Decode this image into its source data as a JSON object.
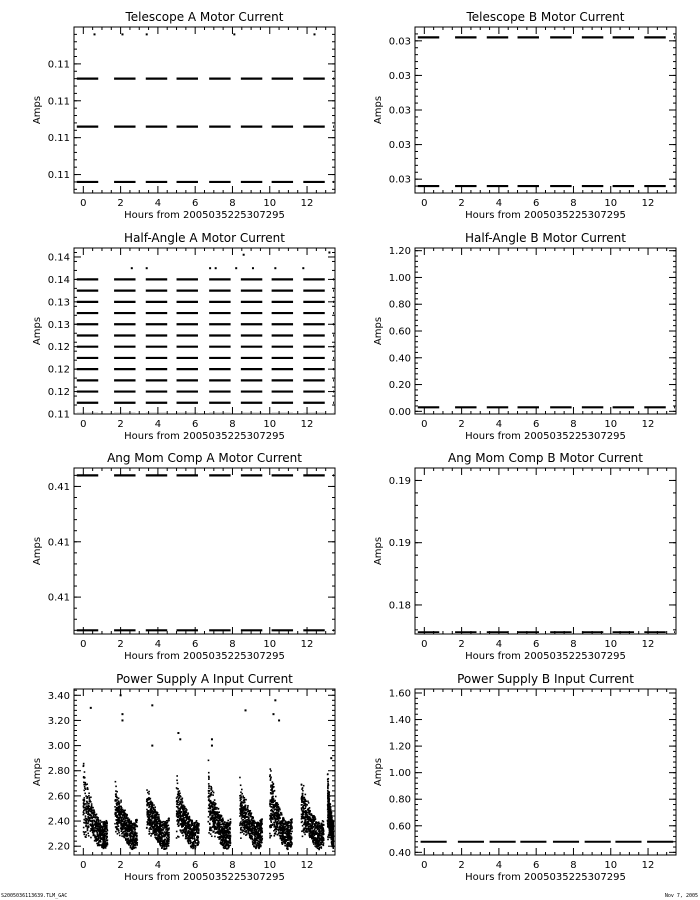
{
  "footer": {
    "left": "S2005036113639.TLM_GAC",
    "right": "Nov  7, 2005"
  },
  "chart_data": [
    {
      "type": "scatter",
      "title": "Telescope A Motor Current",
      "xlabel": "Hours from  2005035225307295",
      "ylabel": "Amps",
      "xlim": [
        -0.5,
        13.5
      ],
      "ylim": [
        0.108,
        0.1125
      ],
      "xticks": [
        0,
        2,
        4,
        6,
        8,
        10,
        12
      ],
      "yticks": [
        0.1085,
        0.1095,
        0.1105,
        0.1115
      ],
      "ytick_labels": [
        "0.11",
        "0.11",
        "0.11",
        "0.11"
      ],
      "levels": [
        0.1083,
        0.1098,
        0.1111
      ],
      "outliers": [
        [
          0.6,
          0.1123
        ],
        [
          2.1,
          0.1123
        ],
        [
          3.4,
          0.1123
        ],
        [
          8.1,
          0.1123
        ],
        [
          12.4,
          0.1123
        ]
      ]
    },
    {
      "type": "scatter",
      "title": "Telescope B Motor Current",
      "xlabel": "Hours from  2005035225307295",
      "ylabel": "Amps",
      "xlim": [
        -0.5,
        13.5
      ],
      "ylim": [
        0.0296,
        0.0344
      ],
      "xticks": [
        0,
        2,
        4,
        6,
        8,
        10,
        12
      ],
      "yticks": [
        0.03,
        0.031,
        0.032,
        0.033,
        0.034
      ],
      "ytick_labels": [
        "0.03",
        "0.03",
        "0.03",
        "0.03",
        "0.03"
      ],
      "levels": [
        0.0298,
        0.0341
      ],
      "outliers": []
    },
    {
      "type": "scatter",
      "title": "Half-Angle A Motor Current",
      "xlabel": "Hours from  2005035225307295",
      "ylabel": "Amps",
      "xlim": [
        -0.5,
        13.5
      ],
      "ylim": [
        0.11,
        0.147
      ],
      "xticks": [
        0,
        2,
        4,
        6,
        8,
        10,
        12
      ],
      "yticks": [
        0.11,
        0.12,
        0.13,
        0.14
      ],
      "ytick_labels": [
        "0.11",
        "0.12",
        "0.13",
        "0.14"
      ],
      "minor_yticks": [
        0.115,
        0.125,
        0.135,
        0.145
      ],
      "minor_ytick_labels": [
        "0.12",
        "0.12",
        "0.13",
        "0.14"
      ],
      "levels": [
        0.11,
        0.1125,
        0.115,
        0.1175,
        0.12,
        0.1225,
        0.125,
        0.1275,
        0.13,
        0.1325,
        0.135,
        0.1375,
        0.14
      ],
      "outliers": [
        [
          2.6,
          0.1425
        ],
        [
          3.4,
          0.1425
        ],
        [
          6.8,
          0.1425
        ],
        [
          7.1,
          0.1425
        ],
        [
          8.2,
          0.1425
        ],
        [
          8.6,
          0.1455
        ],
        [
          9.1,
          0.1425
        ],
        [
          10.3,
          0.1425
        ],
        [
          11.8,
          0.1425
        ],
        [
          13.2,
          0.146
        ]
      ]
    },
    {
      "type": "scatter",
      "title": "Half-Angle B Motor Current",
      "xlabel": "Hours from  2005035225307295",
      "ylabel": "Amps",
      "xlim": [
        -0.5,
        13.5
      ],
      "ylim": [
        -0.02,
        1.22
      ],
      "xticks": [
        0,
        2,
        4,
        6,
        8,
        10,
        12
      ],
      "yticks": [
        0.0,
        0.2,
        0.4,
        0.6,
        0.8,
        1.0,
        1.2
      ],
      "ytick_labels": [
        "0.00",
        "0.20",
        "0.40",
        "0.60",
        "0.80",
        "1.00",
        "1.20"
      ],
      "levels": [
        0.03
      ],
      "outliers": []
    },
    {
      "type": "scatter",
      "title": "Ang Mom Comp A Motor Current",
      "xlabel": "Hours from  2005035225307295",
      "ylabel": "Amps",
      "xlim": [
        -0.5,
        13.5
      ],
      "ylim": [
        0.409,
        0.4135
      ],
      "xticks": [
        0,
        2,
        4,
        6,
        8,
        10,
        12
      ],
      "yticks": [
        0.41,
        0.4115,
        0.413
      ],
      "ytick_labels": [
        "0.41",
        "0.41",
        "0.41"
      ],
      "levels": [
        0.4091,
        0.4133
      ],
      "outliers": []
    },
    {
      "type": "scatter",
      "title": "Ang Mom Comp B Motor Current",
      "xlabel": "Hours from  2005035225307295",
      "ylabel": "Amps",
      "xlim": [
        -0.5,
        13.5
      ],
      "ylim": [
        0.176,
        0.196
      ],
      "xticks": [
        0,
        2,
        4,
        6,
        8,
        10,
        12
      ],
      "yticks": [
        0.1795,
        0.187,
        0.1945
      ],
      "ytick_labels": [
        "0.18",
        "0.19",
        "0.19"
      ],
      "levels": [
        0.1762
      ],
      "outliers": [
        [
          13.3,
          0.196
        ]
      ]
    },
    {
      "type": "scatter",
      "title": "Power Supply A Input Current",
      "xlabel": "Hours from  2005035225307295",
      "ylabel": "Amps",
      "xlim": [
        -0.5,
        13.5
      ],
      "ylim": [
        2.13,
        3.45
      ],
      "xticks": [
        0,
        2,
        4,
        6,
        8,
        10,
        12
      ],
      "yticks": [
        2.2,
        2.4,
        2.6,
        2.8,
        3.0,
        3.2,
        3.4
      ],
      "ytick_labels": [
        "2.20",
        "2.40",
        "2.60",
        "2.80",
        "3.00",
        "3.20",
        "3.40"
      ],
      "spikes": [
        {
          "start": 0.0,
          "end": 1.3,
          "peak": 2.85
        },
        {
          "start": 1.7,
          "end": 2.9,
          "peak": 2.7
        },
        {
          "start": 3.4,
          "end": 4.6,
          "peak": 2.65
        },
        {
          "start": 5.0,
          "end": 6.2,
          "peak": 2.75
        },
        {
          "start": 6.7,
          "end": 7.9,
          "peak": 2.85
        },
        {
          "start": 8.4,
          "end": 9.6,
          "peak": 2.7
        },
        {
          "start": 10.0,
          "end": 11.2,
          "peak": 2.9
        },
        {
          "start": 11.7,
          "end": 12.9,
          "peak": 2.75
        },
        {
          "start": 13.1,
          "end": 13.5,
          "peak": 2.85
        }
      ],
      "outliers": [
        [
          0.4,
          3.3
        ],
        [
          2.0,
          3.4
        ],
        [
          2.1,
          3.25
        ],
        [
          2.1,
          3.2
        ],
        [
          3.7,
          3.32
        ],
        [
          3.7,
          3.0
        ],
        [
          5.1,
          3.1
        ],
        [
          5.2,
          3.05
        ],
        [
          6.9,
          3.05
        ],
        [
          6.9,
          3.0
        ],
        [
          8.7,
          3.28
        ],
        [
          10.3,
          3.36
        ],
        [
          10.2,
          3.25
        ],
        [
          10.5,
          3.2
        ],
        [
          13.3,
          2.9
        ]
      ]
    },
    {
      "type": "scatter",
      "title": "Power Supply B Input Current",
      "xlabel": "Hours from  2005035225307295",
      "ylabel": "Amps",
      "xlim": [
        -0.5,
        13.5
      ],
      "ylim": [
        0.38,
        1.63
      ],
      "xticks": [
        0,
        2,
        4,
        6,
        8,
        10,
        12
      ],
      "yticks": [
        0.4,
        0.6,
        0.8,
        1.0,
        1.2,
        1.4,
        1.6
      ],
      "ytick_labels": [
        "0.40",
        "0.60",
        "0.80",
        "1.00",
        "1.20",
        "1.40",
        "1.60"
      ],
      "levels": [
        0.48
      ],
      "continuous": true,
      "outliers": []
    }
  ]
}
